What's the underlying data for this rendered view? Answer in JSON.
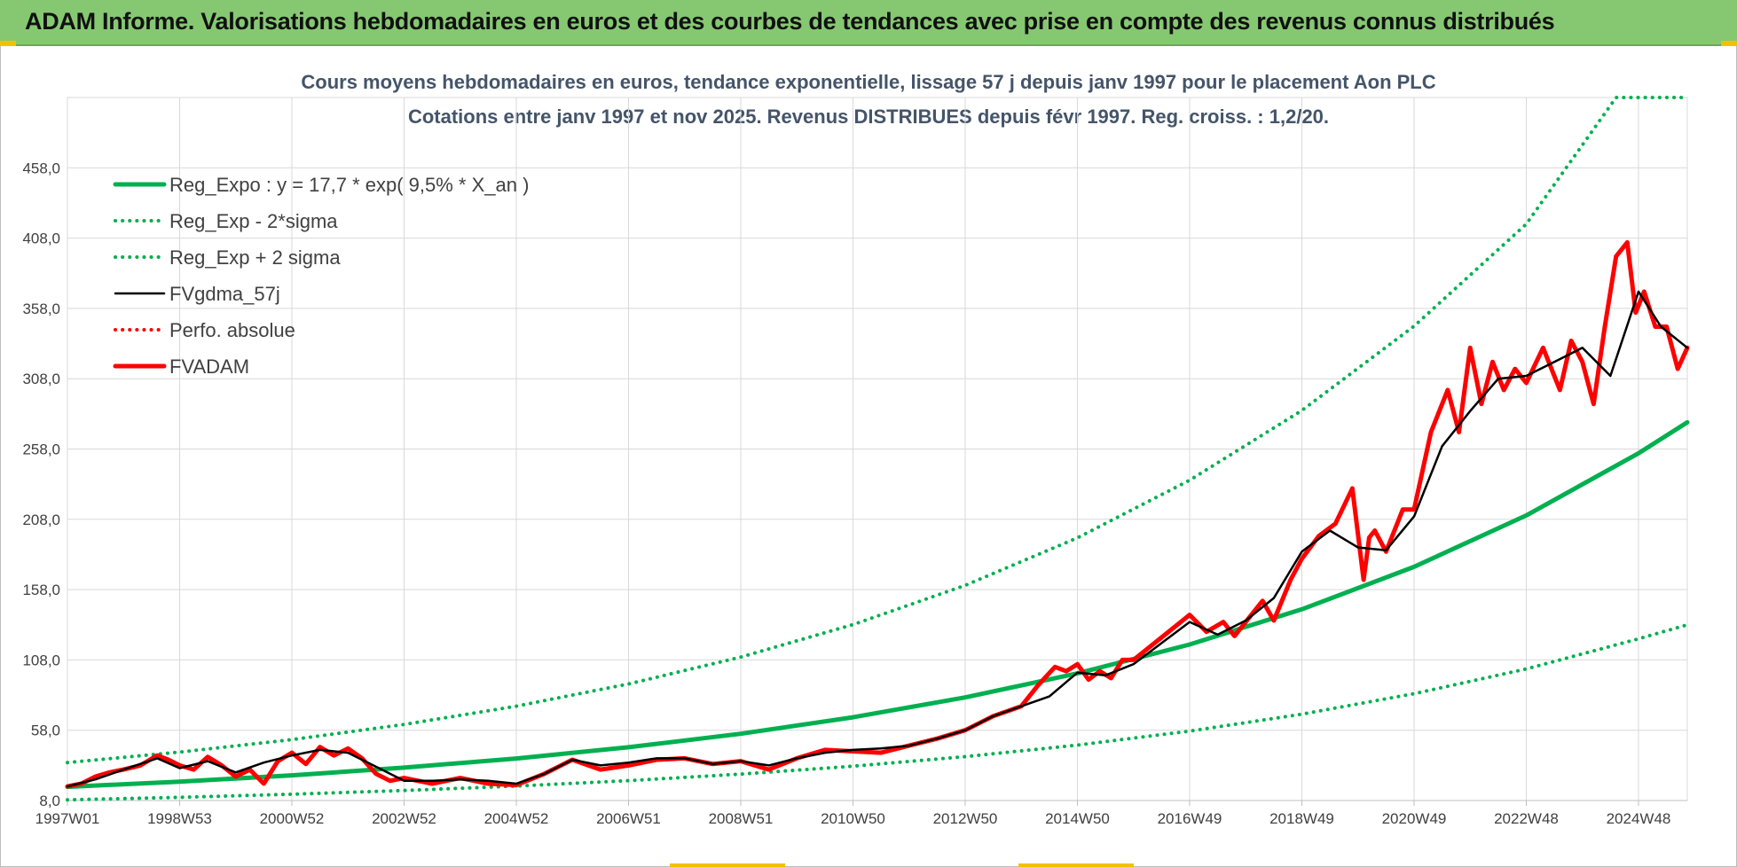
{
  "banner": {
    "title": "ADAM Informe. Valorisations hebdomadaires en euros et des courbes de tendances avec prise en compte des revenus connus distribués"
  },
  "colors": {
    "banner_bg": "#86c872",
    "trend": "#00b050",
    "smoothed": "#000000",
    "price": "#ff0000",
    "title_text": "#44546a"
  },
  "chart_data": {
    "type": "line",
    "title": "Cours moyens hebdomadaires en euros, tendance exponentielle, lissage 57 j depuis janv 1997 pour le placement Aon PLC",
    "subtitle": "Cotations entre janv 1997 et nov 2025. Revenus DISTRIBUES depuis févr 1997. Reg. croiss. : 1,2/20.",
    "xlabel": "",
    "ylabel": "",
    "ylim": [
      8,
      508
    ],
    "xlim": [
      1997.0,
      2025.87
    ],
    "grid": true,
    "legend_position": "top-left",
    "y_ticks": [
      "8,0",
      "58,0",
      "108,0",
      "158,0",
      "208,0",
      "258,0",
      "308,0",
      "358,0",
      "408,0",
      "458,0"
    ],
    "y_tick_values": [
      8,
      58,
      108,
      158,
      208,
      258,
      308,
      358,
      408,
      458
    ],
    "x_ticks": [
      "1997W01",
      "1998W53",
      "2000W52",
      "2002W52",
      "2004W52",
      "2006W51",
      "2008W51",
      "2010W50",
      "2012W50",
      "2014W50",
      "2016W49",
      "2018W49",
      "2020W49",
      "2022W48",
      "2024W48"
    ],
    "x_tick_values": [
      1997.0,
      1999.0,
      2001.0,
      2003.0,
      2005.0,
      2007.0,
      2009.0,
      2011.0,
      2013.0,
      2015.0,
      2017.0,
      2019.0,
      2021.0,
      2023.0,
      2025.0
    ],
    "series": [
      {
        "name": "Reg_Expo : y = 17,7 * exp( 9,5% *  X_an )",
        "style": "solid-thick",
        "color": "#00b050",
        "x": [
          1997.0,
          1999.0,
          2001.0,
          2003.0,
          2005.0,
          2007.0,
          2009.0,
          2011.0,
          2013.0,
          2015.0,
          2017.0,
          2019.0,
          2021.0,
          2023.0,
          2025.0,
          2025.87
        ],
        "values": [
          17.7,
          21.4,
          25.9,
          31.4,
          37.9,
          45.9,
          55.5,
          67.2,
          81.3,
          98.4,
          119.0,
          144.0,
          174.2,
          210.8,
          255.0,
          277.0
        ]
      },
      {
        "name": "Reg_Exp - 2*sigma",
        "style": "dotted",
        "color": "#00b050",
        "x": [
          1997.0,
          1999.0,
          2001.0,
          2003.0,
          2005.0,
          2007.0,
          2009.0,
          2011.0,
          2013.0,
          2015.0,
          2017.0,
          2019.0,
          2021.0,
          2023.0,
          2025.0,
          2025.87
        ],
        "values": [
          8.5,
          10.3,
          12.5,
          15.1,
          18.3,
          22.1,
          26.8,
          32.4,
          39.2,
          47.4,
          57.4,
          69.4,
          84.0,
          101.6,
          123.0,
          133.0
        ]
      },
      {
        "name": "Reg_Exp + 2 sigma",
        "style": "dotted",
        "color": "#00b050",
        "x": [
          1997.0,
          1999.0,
          2001.0,
          2003.0,
          2005.0,
          2007.0,
          2009.0,
          2011.0,
          2013.0,
          2015.0,
          2017.0,
          2019.0,
          2021.0,
          2023.0,
          2024.6,
          2025.87
        ],
        "values": [
          35.0,
          42.4,
          51.3,
          62.1,
          75.1,
          90.9,
          110.0,
          133.1,
          161.0,
          194.8,
          235.8,
          285.4,
          345.4,
          418.0,
          508.0,
          508.0
        ]
      },
      {
        "name": "FVgdma_57j",
        "style": "solid",
        "color": "#000000",
        "x": [
          1997.0,
          1997.5,
          1998.0,
          1998.6,
          1999.0,
          1999.5,
          2000.0,
          2000.5,
          2001.0,
          2001.5,
          2002.0,
          2002.5,
          2003.0,
          2003.5,
          2004.0,
          2004.5,
          2005.0,
          2005.5,
          2006.0,
          2006.5,
          2007.0,
          2007.5,
          2008.0,
          2008.5,
          2009.0,
          2009.5,
          2010.0,
          2010.5,
          2011.0,
          2011.5,
          2012.0,
          2012.5,
          2013.0,
          2013.5,
          2014.0,
          2014.5,
          2015.0,
          2015.5,
          2016.0,
          2016.5,
          2017.0,
          2017.5,
          2018.0,
          2018.5,
          2019.0,
          2019.5,
          2020.0,
          2020.5,
          2021.0,
          2021.5,
          2022.0,
          2022.5,
          2023.0,
          2023.5,
          2024.0,
          2024.5,
          2025.0,
          2025.4,
          2025.87
        ],
        "values": [
          18,
          23,
          30,
          38,
          31,
          36,
          28,
          35,
          40,
          44,
          42,
          32,
          22,
          22,
          23,
          22,
          20,
          27,
          37,
          33,
          35,
          38,
          38,
          34,
          36,
          33,
          38,
          42,
          44,
          45,
          47,
          52,
          58,
          68,
          75,
          82,
          99,
          97,
          105,
          120,
          135,
          126,
          136,
          152,
          185,
          200,
          188,
          186,
          210,
          260,
          285,
          308,
          310,
          320,
          330,
          310,
          370,
          345,
          330
        ]
      },
      {
        "name": "Perfo. absolue",
        "style": "dotted",
        "color": "#ff0000",
        "x": [],
        "values": []
      },
      {
        "name": "FVADAM",
        "style": "solid-thick",
        "color": "#ff0000",
        "x": [
          1997.0,
          1997.25,
          1997.5,
          1997.75,
          1998.0,
          1998.3,
          1998.6,
          1998.8,
          1999.0,
          1999.25,
          1999.5,
          1999.75,
          2000.0,
          2000.25,
          2000.5,
          2000.75,
          2001.0,
          2001.25,
          2001.5,
          2001.75,
          2002.0,
          2002.25,
          2002.5,
          2002.75,
          2003.0,
          2003.5,
          2004.0,
          2004.5,
          2005.0,
          2005.5,
          2006.0,
          2006.5,
          2007.0,
          2007.5,
          2008.0,
          2008.5,
          2009.0,
          2009.5,
          2010.0,
          2010.5,
          2011.0,
          2011.5,
          2012.0,
          2012.5,
          2013.0,
          2013.5,
          2014.0,
          2014.3,
          2014.6,
          2014.8,
          2015.0,
          2015.2,
          2015.4,
          2015.6,
          2015.8,
          2016.0,
          2016.5,
          2017.0,
          2017.3,
          2017.6,
          2017.8,
          2018.0,
          2018.3,
          2018.5,
          2018.8,
          2019.0,
          2019.3,
          2019.6,
          2019.9,
          2020.1,
          2020.2,
          2020.3,
          2020.5,
          2020.8,
          2021.0,
          2021.3,
          2021.6,
          2021.8,
          2022.0,
          2022.2,
          2022.4,
          2022.6,
          2022.8,
          2023.0,
          2023.3,
          2023.6,
          2023.8,
          2024.0,
          2024.2,
          2024.4,
          2024.6,
          2024.8,
          2024.95,
          2025.1,
          2025.3,
          2025.5,
          2025.7,
          2025.87
        ],
        "values": [
          18,
          20,
          25,
          28,
          30,
          33,
          40,
          37,
          33,
          30,
          39,
          33,
          25,
          30,
          20,
          36,
          42,
          34,
          46,
          40,
          45,
          38,
          27,
          22,
          24,
          20,
          24,
          20,
          19,
          27,
          37,
          30,
          33,
          37,
          38,
          34,
          36,
          30,
          38,
          44,
          43,
          42,
          47,
          52,
          58,
          68,
          75,
          90,
          103,
          100,
          105,
          94,
          100,
          95,
          108,
          108,
          124,
          140,
          128,
          135,
          125,
          135,
          150,
          136,
          165,
          180,
          196,
          205,
          230,
          165,
          195,
          200,
          185,
          215,
          215,
          270,
          300,
          270,
          330,
          290,
          320,
          300,
          315,
          305,
          330,
          300,
          335,
          320,
          290,
          345,
          395,
          405,
          355,
          370,
          345,
          345,
          315,
          330
        ]
      }
    ]
  }
}
